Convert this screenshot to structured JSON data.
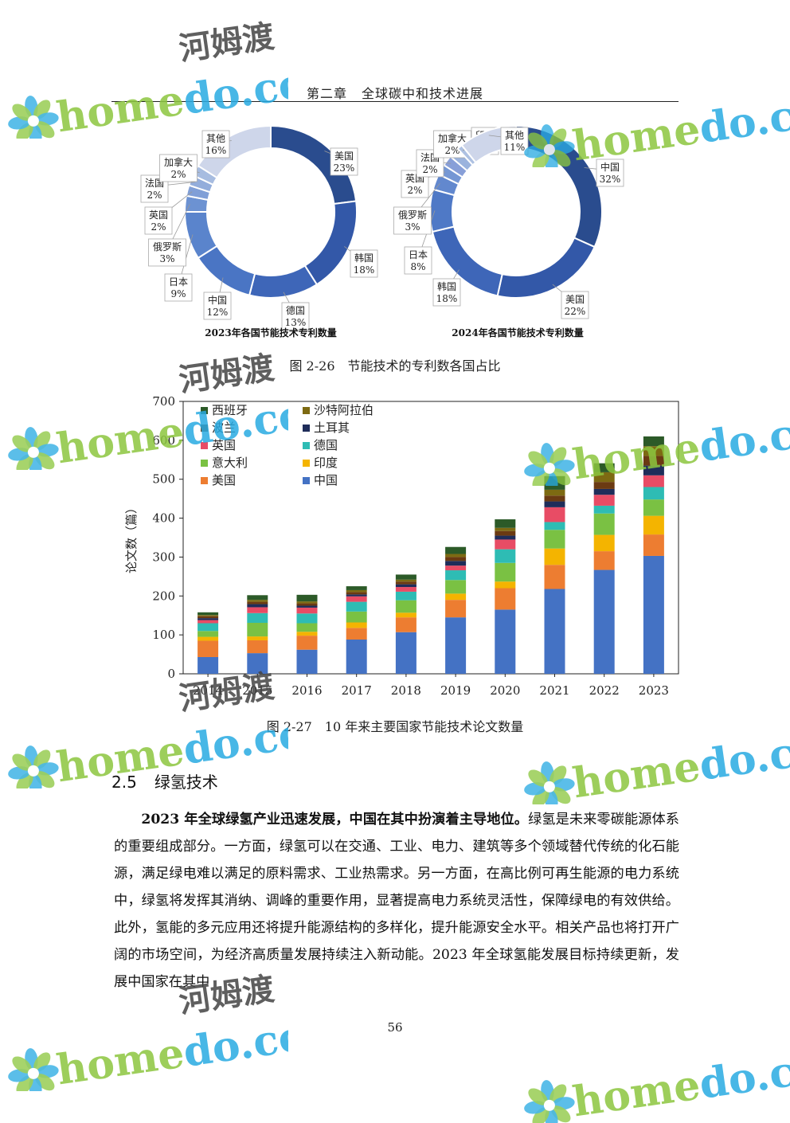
{
  "header": {
    "chapter": "第二章",
    "title": "全球碳中和技术进展"
  },
  "figure_2_26": {
    "caption": "图 2-26　节能技术的专利数各国占比",
    "chart_data": [
      {
        "type": "pie",
        "title": "2023年各国节能技术专利数量",
        "categories": [
          "美国",
          "韩国",
          "德国",
          "中国",
          "日本",
          "俄罗斯",
          "英国",
          "法国",
          "加拿大",
          "其他"
        ],
        "values": [
          23,
          18,
          13,
          12,
          9,
          3,
          2,
          2,
          2,
          16
        ],
        "labels": [
          "23%",
          "18%",
          "13%",
          "12%",
          "9%",
          "3%",
          "2%",
          "2%",
          "2%",
          "16%"
        ],
        "colors": [
          "#2a4c8e",
          "#3358a8",
          "#3e66b8",
          "#4a75c4",
          "#5a84cc",
          "#6c92d2",
          "#809fd7",
          "#93addb",
          "#a7bce0",
          "#ced6ea"
        ]
      },
      {
        "type": "pie",
        "title": "2024年各国节能技术专利数量",
        "categories": [
          "中国",
          "美国",
          "韩国",
          "日本",
          "俄罗斯",
          "英国",
          "法国",
          "加拿大",
          "印度",
          "其他"
        ],
        "values": [
          32,
          22,
          18,
          8,
          3,
          2,
          2,
          2,
          1,
          11
        ],
        "labels": [
          "32%",
          "22%",
          "18%",
          "8%",
          "3%",
          "2%",
          "2%",
          "2%",
          "1%",
          "11%"
        ],
        "colors": [
          "#2a4c8e",
          "#3358a8",
          "#3e66b8",
          "#4f79c6",
          "#6288ce",
          "#7597d4",
          "#889fd8",
          "#9bb3dd",
          "#aec1e2",
          "#ced6ea"
        ]
      }
    ]
  },
  "figure_2_27": {
    "caption": "图 2-27　10 年来主要国家节能技术论文数量",
    "chart_data": {
      "type": "bar",
      "stacked": true,
      "ylabel": "论文数（篇）",
      "ylim": [
        0,
        700
      ],
      "yticks": [
        0,
        100,
        200,
        300,
        400,
        500,
        600,
        700
      ],
      "categories": [
        "2014",
        "2015",
        "2016",
        "2017",
        "2018",
        "2019",
        "2020",
        "2021",
        "2022",
        "2023"
      ],
      "legend_position": "top-left",
      "legend_order": [
        "西班牙",
        "沙特阿拉伯",
        "波兰",
        "土耳其",
        "英国",
        "德国",
        "意大利",
        "印度",
        "美国",
        "中国"
      ],
      "series": [
        {
          "name": "中国",
          "color": "#4472c4",
          "values": [
            43,
            53,
            62,
            88,
            107,
            145,
            165,
            218,
            267,
            303
          ]
        },
        {
          "name": "美国",
          "color": "#ed7d31",
          "values": [
            42,
            33,
            36,
            30,
            38,
            45,
            55,
            62,
            48,
            55
          ]
        },
        {
          "name": "印度",
          "color": "#f4b400",
          "values": [
            10,
            10,
            10,
            14,
            12,
            16,
            17,
            42,
            42,
            48
          ]
        },
        {
          "name": "意大利",
          "color": "#7ac143",
          "values": [
            15,
            35,
            22,
            28,
            32,
            35,
            48,
            48,
            55,
            42
          ]
        },
        {
          "name": "德国",
          "color": "#2ebcb4",
          "values": [
            20,
            25,
            25,
            25,
            22,
            25,
            35,
            20,
            20,
            32
          ]
        },
        {
          "name": "英国",
          "color": "#e84c65",
          "values": [
            8,
            15,
            15,
            14,
            12,
            12,
            25,
            38,
            28,
            30
          ]
        },
        {
          "name": "土耳其",
          "color": "#1f2d5a",
          "values": [
            5,
            8,
            5,
            5,
            7,
            12,
            10,
            15,
            15,
            25
          ]
        },
        {
          "name": "波兰",
          "color": "#6b3a12",
          "values": [
            5,
            6,
            6,
            6,
            7,
            10,
            12,
            15,
            18,
            25
          ]
        },
        {
          "name": "沙特阿拉伯",
          "color": "#7d6a12",
          "values": [
            3,
            5,
            5,
            5,
            5,
            8,
            8,
            15,
            25,
            25
          ]
        },
        {
          "name": "西班牙",
          "color": "#2c5a28",
          "values": [
            7,
            12,
            17,
            10,
            13,
            18,
            22,
            35,
            23,
            25
          ]
        }
      ]
    }
  },
  "section": {
    "number": "2.5",
    "title": "绿氢技术",
    "para_bold": "2023 年全球绿氢产业迅速发展，中国在其中扮演着主导地位。",
    "para_rest": "绿氢是未来零碳能源体系的重要组成部分。一方面，绿氢可以在交通、工业、电力、建筑等多个领域替代传统的化石能源，满足绿电难以满足的原料需求、工业热需求。另一方面，在高比例可再生能源的电力系统中，绿氢将发挥其消纳、调峰的重要作用，显著提高电力系统灵活性，保障绿电的有效供给。此外，氢能的多元应用还将提升能源结构的多样化，提升能源安全水平。相关产品也将打开广阔的市场空间，为经济高质量发展持续注入新动能。2023 年全球氢能发展目标持续更新，发展中国家在其中"
  },
  "page_number": "56",
  "watermark": {
    "site": "homedo.com",
    "brand": "河姆渡",
    "icon": "flower-logo-icon",
    "colors": {
      "home": "#8cc63f",
      "do": "#29abe2",
      "com": "#29abe2",
      "brand": "#444444"
    }
  }
}
